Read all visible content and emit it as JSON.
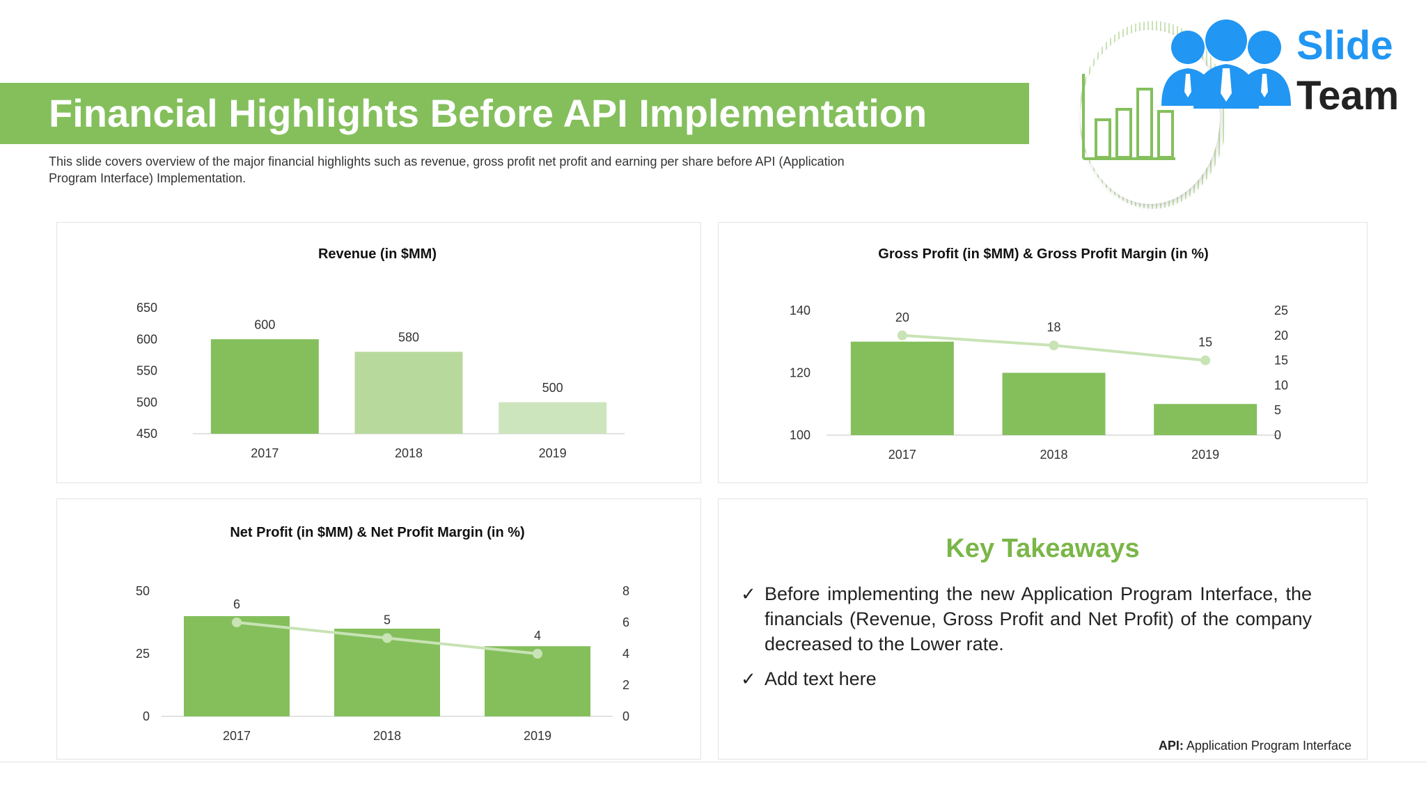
{
  "header": {
    "title": "Financial Highlights Before API Implementation",
    "subtitle": "This slide covers overview of the major financial highlights such as revenue, gross profit net profit and earning per share before API (Application Program Interface) Implementation."
  },
  "logo": {
    "word1": "Slide",
    "word2": "Team"
  },
  "colors": {
    "accent": "#84bf5c",
    "light_green": "#b8d99c",
    "pale_green": "#cde5bd",
    "line": "#c8e3b5",
    "logo_blue": "#2196f3"
  },
  "chart_data": [
    {
      "type": "bar",
      "title": "Revenue (in $MM)",
      "categories": [
        "2017",
        "2018",
        "2019"
      ],
      "values": [
        600,
        580,
        500
      ],
      "ylim": [
        450,
        650
      ],
      "yticks": [
        450,
        500,
        550,
        600,
        650
      ],
      "data_labels": [
        "600",
        "580",
        "500"
      ]
    },
    {
      "type": "bar",
      "title": "Gross Profit (in $MM) & Gross Profit Margin (in %)",
      "categories": [
        "2017",
        "2018",
        "2019"
      ],
      "series": [
        {
          "type": "bar",
          "values": [
            130,
            120,
            110
          ],
          "axis": "left"
        },
        {
          "type": "line",
          "values": [
            20,
            18,
            15
          ],
          "axis": "right"
        }
      ],
      "ylim": [
        100,
        140
      ],
      "yticks": [
        100,
        120,
        140
      ],
      "y2lim": [
        0,
        25
      ],
      "y2ticks": [
        0,
        5,
        10,
        15,
        20,
        25
      ],
      "data_labels": [
        "20",
        "18",
        "15"
      ]
    },
    {
      "type": "bar",
      "title": "Net Profit (in $MM) & Net Profit Margin (in %)",
      "categories": [
        "2017",
        "2018",
        "2019"
      ],
      "series": [
        {
          "type": "bar",
          "values": [
            40,
            35,
            28
          ],
          "axis": "left"
        },
        {
          "type": "line",
          "values": [
            6,
            5,
            4
          ],
          "axis": "right"
        }
      ],
      "ylim": [
        0,
        50
      ],
      "yticks": [
        0,
        25,
        50
      ],
      "y2lim": [
        0,
        8
      ],
      "y2ticks": [
        0,
        2,
        4,
        6,
        8
      ],
      "data_labels": [
        "6",
        "5",
        "4"
      ]
    }
  ],
  "takeaways": {
    "title": "Key Takeaways",
    "items": [
      "Before implementing the new Application Program Interface, the financials (Revenue, Gross Profit and Net Profit) of the company decreased to the Lower rate.",
      "Add text here"
    ],
    "footnote_bold": "API:",
    "footnote_text": " Application Program Interface"
  }
}
